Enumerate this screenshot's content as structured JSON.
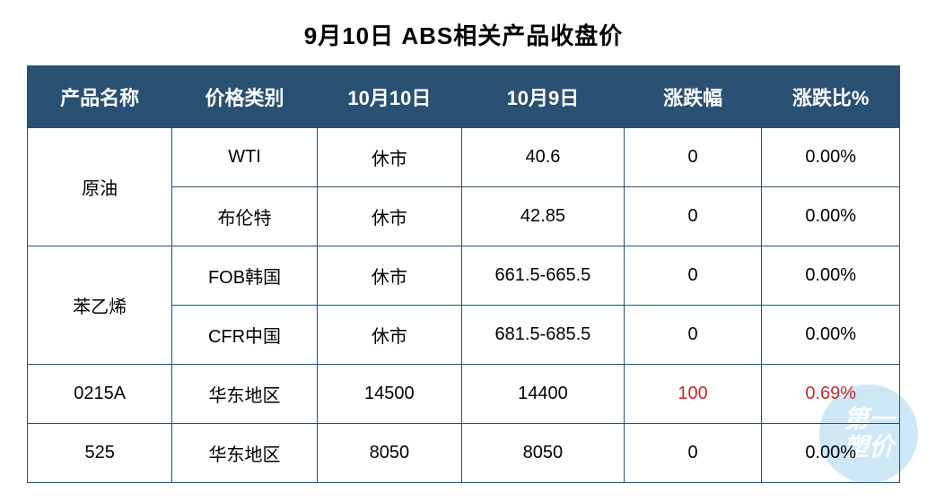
{
  "title": "9月10日 ABS相关产品收盘价",
  "columns": [
    "产品名称",
    "价格类别",
    "10月10日",
    "10月9日",
    "涨跌幅",
    "涨跌比%"
  ],
  "colors": {
    "header_bg": "#2a5073",
    "header_text": "#ffffff",
    "border": "#2a5073",
    "text": "#000000",
    "highlight": "#c52a2a",
    "background": "#ffffff",
    "watermark_bg": "rgba(79,168,222,0.28)"
  },
  "typography": {
    "title_fontsize": 26,
    "header_fontsize": 22,
    "cell_fontsize": 20,
    "font_family": "SimHei"
  },
  "column_widths_pct": [
    16.6,
    16.6,
    16.6,
    18.6,
    15.8,
    15.8
  ],
  "rows": [
    {
      "product": "原油",
      "rowspan": 2,
      "category": "WTI",
      "d1": "休市",
      "d2": "40.6",
      "delta": "0",
      "pct": "0.00%",
      "highlight": false
    },
    {
      "product": "",
      "rowspan": 0,
      "category": "布伦特",
      "d1": "休市",
      "d2": "42.85",
      "delta": "0",
      "pct": "0.00%",
      "highlight": false
    },
    {
      "product": "苯乙烯",
      "rowspan": 2,
      "category": "FOB韩国",
      "d1": "休市",
      "d2": "661.5-665.5",
      "delta": "0",
      "pct": "0.00%",
      "highlight": false
    },
    {
      "product": "",
      "rowspan": 0,
      "category": "CFR中国",
      "d1": "休市",
      "d2": "681.5-685.5",
      "delta": "0",
      "pct": "0.00%",
      "highlight": false
    },
    {
      "product": "0215A",
      "rowspan": 1,
      "category": "华东地区",
      "d1": "14500",
      "d2": "14400",
      "delta": "100",
      "pct": "0.69%",
      "highlight": true
    },
    {
      "product": "525",
      "rowspan": 1,
      "category": "华东地区",
      "d1": "8050",
      "d2": "8050",
      "delta": "0",
      "pct": "0.00%",
      "highlight": false
    }
  ],
  "watermark": {
    "line1": "第一",
    "line2": "塑价"
  }
}
